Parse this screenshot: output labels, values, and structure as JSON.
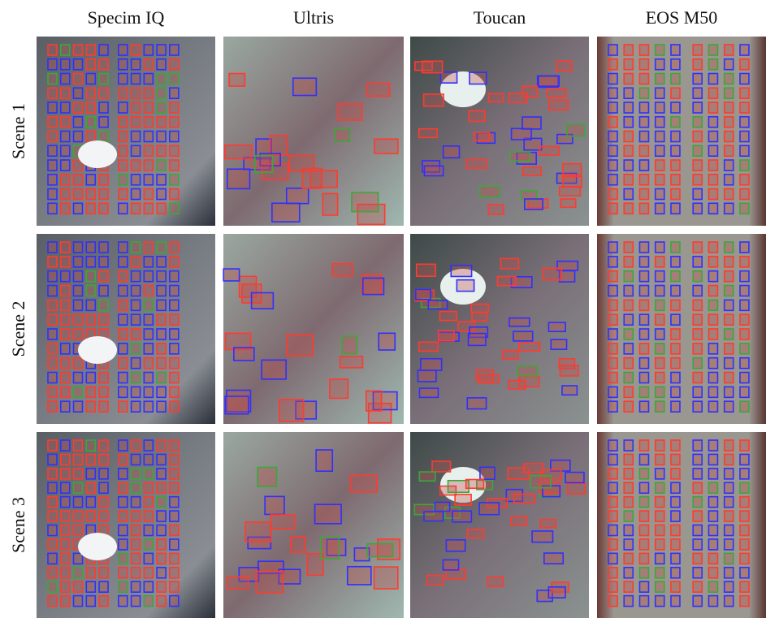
{
  "columns": [
    "Specim IQ",
    "Ultris",
    "Toucan",
    "EOS M50"
  ],
  "rows": [
    "Scene 1",
    "Scene 2",
    "Scene 3"
  ]
}
